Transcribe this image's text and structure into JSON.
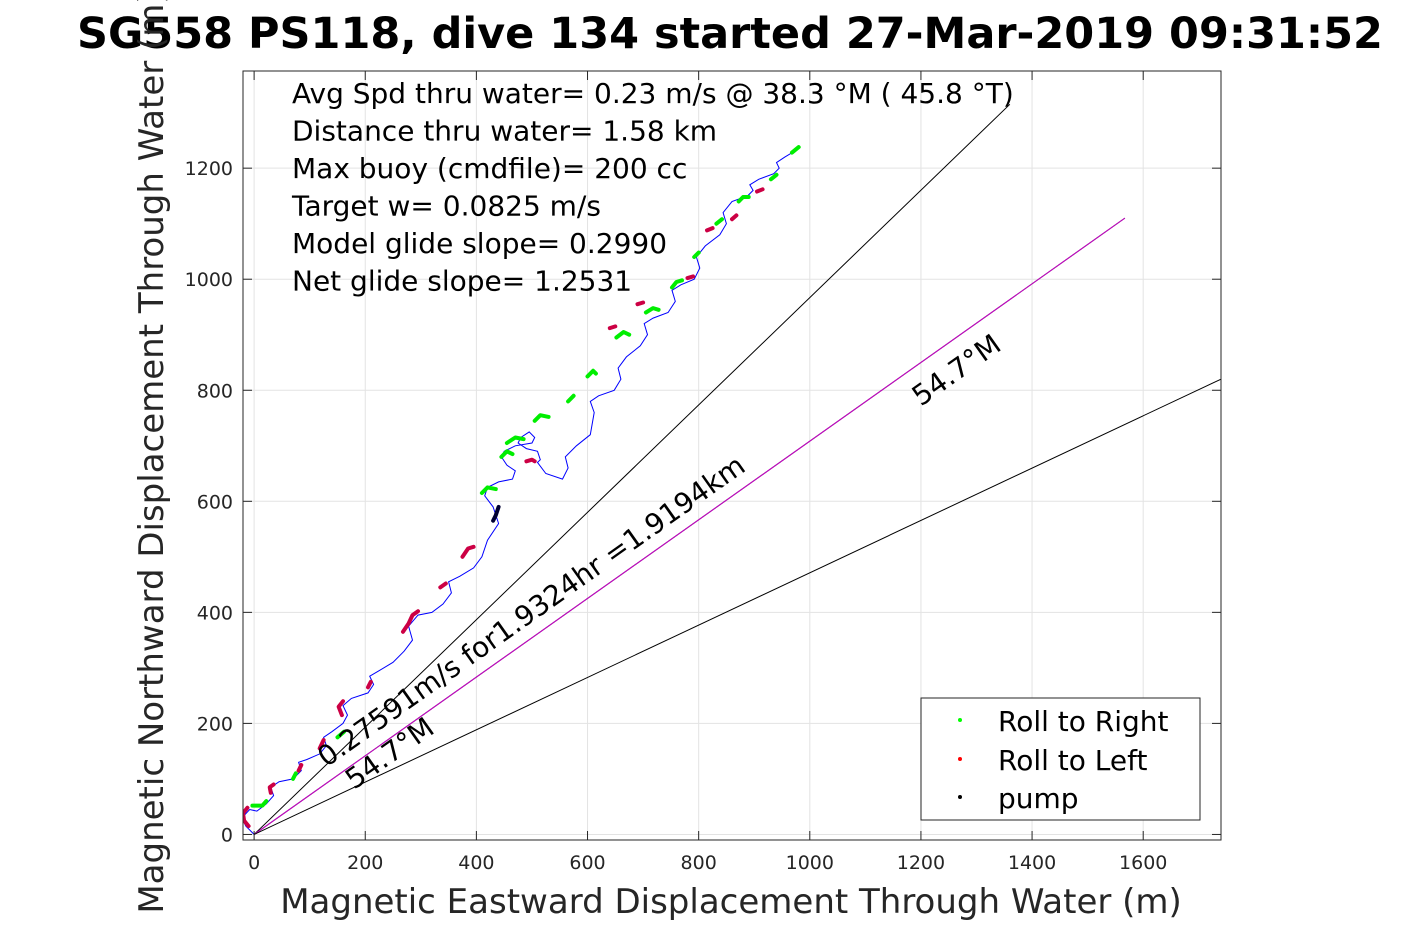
{
  "chart_data": {
    "type": "line",
    "title": "SG558 PS118, dive 134 started 27-Mar-2019 09:31:52",
    "xlabel": "Magnetic Eastward Displacement Through Water (m)",
    "ylabel": "Magnetic Northward Displacement Through Water (m)",
    "xlim": [
      -20,
      1740
    ],
    "ylim": [
      -10,
      1375
    ],
    "xticks": [
      0,
      200,
      400,
      600,
      800,
      1000,
      1200,
      1400,
      1600
    ],
    "yticks": [
      0,
      200,
      400,
      600,
      800,
      1000,
      1200
    ],
    "grid": true,
    "info_lines": [
      "Avg Spd thru water=  0.23 m/s @  38.3 °M ( 45.8 °T)",
      "Distance thru water=  1.58 km",
      "Max buoy (cmdfile)= 200 cc",
      "Target w= 0.0825 m/s",
      "Model glide slope= 0.2990",
      "Net glide slope= 1.2531"
    ],
    "reference_lines": [
      {
        "x": [
          0,
          1360
        ],
        "y": [
          0,
          1315
        ],
        "color": "#000000"
      },
      {
        "x": [
          0,
          1567
        ],
        "y": [
          0,
          1110
        ],
        "color": "#000000"
      },
      {
        "x": [
          0,
          1567
        ],
        "y": [
          0,
          1110
        ],
        "color": "#cc00cc"
      },
      {
        "x": [
          0,
          1740
        ],
        "y": [
          0,
          820
        ],
        "color": "#000000"
      }
    ],
    "annotations": [
      {
        "text": "0.27591m/s for1.9324hr =1.9194km",
        "x": 130,
        "y": 120,
        "angle": -35.3
      },
      {
        "text": "54.7°M",
        "x": 1200,
        "y": 770,
        "angle": -35.3
      },
      {
        "text": "54.7°M",
        "x": 180,
        "y": 80,
        "angle": -35.3
      }
    ],
    "track": {
      "color": "#0000ff",
      "x": [
        0,
        -15,
        -22,
        -8,
        5,
        22,
        35,
        30,
        45,
        70,
        85,
        80,
        95,
        118,
        130,
        125,
        140,
        160,
        168,
        160,
        175,
        205,
        215,
        208,
        225,
        250,
        270,
        285,
        278,
        295,
        320,
        340,
        355,
        350,
        370,
        395,
        410,
        420,
        440,
        430,
        415,
        420,
        440,
        465,
        470,
        455,
        445,
        450,
        470,
        500,
        505,
        495,
        480,
        475,
        490,
        510,
        515,
        510,
        525,
        555,
        565,
        560,
        580,
        605,
        612,
        605,
        620,
        648,
        660,
        655,
        670,
        695,
        708,
        702,
        718,
        745,
        758,
        752,
        768,
        792,
        802,
        796,
        812,
        838,
        850,
        844,
        860,
        888,
        898,
        892,
        908,
        935,
        945,
        940,
        955,
        975,
        980
      ],
      "y": [
        0,
        15,
        30,
        45,
        42,
        55,
        70,
        85,
        95,
        100,
        115,
        130,
        135,
        145,
        160,
        175,
        185,
        200,
        215,
        232,
        245,
        255,
        270,
        285,
        295,
        310,
        330,
        350,
        375,
        395,
        400,
        415,
        435,
        455,
        465,
        480,
        500,
        530,
        560,
        590,
        610,
        625,
        635,
        640,
        655,
        665,
        680,
        690,
        700,
        705,
        715,
        725,
        715,
        705,
        695,
        690,
        675,
        670,
        650,
        640,
        660,
        680,
        700,
        720,
        760,
        780,
        790,
        800,
        820,
        840,
        860,
        880,
        900,
        920,
        930,
        940,
        960,
        980,
        990,
        1000,
        1020,
        1040,
        1060,
        1080,
        1100,
        1120,
        1140,
        1150,
        1160,
        1170,
        1180,
        1190,
        1200,
        1210,
        1220,
        1232,
        1240
      ]
    },
    "roll_right_segments": [
      [
        [
          -3,
          52
        ],
        [
          15,
          52
        ],
        [
          22,
          60
        ]
      ],
      [
        [
          70,
          100
        ],
        [
          75,
          110
        ]
      ],
      [
        [
          150,
          175
        ],
        [
          162,
          185
        ]
      ],
      [
        [
          410,
          615
        ],
        [
          420,
          625
        ],
        [
          435,
          622
        ]
      ],
      [
        [
          445,
          680
        ],
        [
          455,
          690
        ],
        [
          465,
          685
        ]
      ],
      [
        [
          455,
          705
        ],
        [
          470,
          715
        ],
        [
          485,
          712
        ]
      ],
      [
        [
          505,
          745
        ],
        [
          515,
          755
        ],
        [
          530,
          752
        ]
      ],
      [
        [
          565,
          780
        ],
        [
          575,
          790
        ]
      ],
      [
        [
          600,
          825
        ],
        [
          610,
          835
        ],
        [
          615,
          830
        ]
      ],
      [
        [
          652,
          895
        ],
        [
          665,
          905
        ],
        [
          675,
          900
        ]
      ],
      [
        [
          705,
          940
        ],
        [
          718,
          948
        ],
        [
          728,
          945
        ]
      ],
      [
        [
          752,
          985
        ],
        [
          760,
          995
        ],
        [
          770,
          998
        ]
      ],
      [
        [
          792,
          1040
        ],
        [
          800,
          1048
        ]
      ],
      [
        [
          832,
          1100
        ],
        [
          842,
          1108
        ]
      ],
      [
        [
          872,
          1140
        ],
        [
          880,
          1148
        ],
        [
          890,
          1148
        ]
      ],
      [
        [
          930,
          1180
        ],
        [
          940,
          1188
        ]
      ],
      [
        [
          968,
          1228
        ],
        [
          980,
          1238
        ]
      ]
    ],
    "roll_left_segments": [
      [
        [
          -10,
          15
        ],
        [
          -18,
          25
        ],
        [
          -20,
          38
        ],
        [
          -12,
          48
        ]
      ],
      [
        [
          30,
          75
        ],
        [
          28,
          85
        ],
        [
          35,
          90
        ]
      ],
      [
        [
          80,
          115
        ],
        [
          85,
          125
        ]
      ],
      [
        [
          118,
          155
        ],
        [
          125,
          170
        ]
      ],
      [
        [
          158,
          215
        ],
        [
          152,
          230
        ],
        [
          160,
          240
        ]
      ],
      [
        [
          205,
          265
        ],
        [
          210,
          275
        ]
      ],
      [
        [
          268,
          365
        ],
        [
          278,
          380
        ],
        [
          285,
          395
        ],
        [
          295,
          402
        ]
      ],
      [
        [
          335,
          445
        ],
        [
          345,
          452
        ]
      ],
      [
        [
          375,
          500
        ],
        [
          385,
          515
        ],
        [
          395,
          518
        ]
      ],
      [
        [
          490,
          672
        ],
        [
          500,
          675
        ],
        [
          505,
          672
        ]
      ],
      [
        [
          640,
          912
        ],
        [
          650,
          915
        ]
      ],
      [
        [
          690,
          955
        ],
        [
          700,
          958
        ]
      ],
      [
        [
          780,
          1002
        ],
        [
          790,
          1005
        ]
      ],
      [
        [
          815,
          1088
        ],
        [
          825,
          1092
        ]
      ],
      [
        [
          860,
          1108
        ],
        [
          868,
          1115
        ]
      ],
      [
        [
          905,
          1158
        ],
        [
          915,
          1162
        ]
      ]
    ],
    "pump_segments": [
      [
        [
          440,
          590
        ],
        [
          435,
          575
        ],
        [
          430,
          565
        ]
      ]
    ],
    "legend": {
      "location": "bottom-right",
      "entries": [
        {
          "label": "Roll to Right",
          "color": "#00ff00"
        },
        {
          "label": "Roll to Left",
          "color": "#ff0000"
        },
        {
          "label": "pump",
          "color": "#000000"
        }
      ]
    }
  }
}
